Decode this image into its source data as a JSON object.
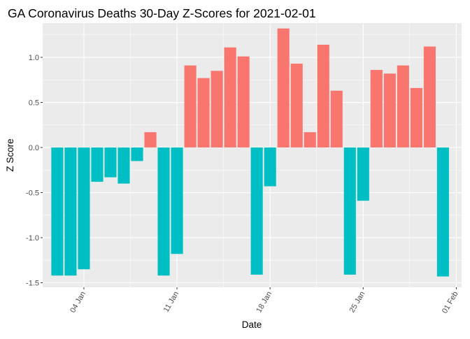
{
  "chart_data": {
    "type": "bar",
    "title": "GA Coronavirus Deaths 30-Day Z-Scores for 2021-02-01",
    "xlabel": "Date",
    "ylabel": "Z Score",
    "ylim": [
      -1.55,
      1.38
    ],
    "y_ticks": [
      -1.5,
      -1.0,
      -0.5,
      0.0,
      0.5,
      1.0
    ],
    "y_tick_labels": [
      "-1.5",
      "-1.0",
      "-0.5",
      "0.0",
      "0.5",
      "1.0"
    ],
    "x_tick_labels": [
      "04 Jan",
      "11 Jan",
      "18 Jan",
      "25 Jan",
      "01 Feb"
    ],
    "x_tick_days": [
      4,
      11,
      18,
      25,
      32
    ],
    "x_start_day": 2,
    "x_range_days": [
      0.9,
      32.4
    ],
    "values": [
      -1.42,
      -1.42,
      -1.35,
      -0.38,
      -0.33,
      -0.4,
      -0.15,
      0.17,
      -1.42,
      -1.18,
      0.91,
      0.77,
      0.85,
      1.11,
      1.01,
      -1.41,
      -0.43,
      1.32,
      0.93,
      0.17,
      1.14,
      0.63,
      -1.41,
      -0.59,
      0.86,
      0.82,
      0.91,
      0.66,
      1.12,
      -1.43
    ],
    "colors": {
      "positive": "#F8766D",
      "negative": "#00BFC4",
      "panel": "#EBEBEB",
      "grid": "#FFFFFF"
    },
    "legend": "none"
  }
}
